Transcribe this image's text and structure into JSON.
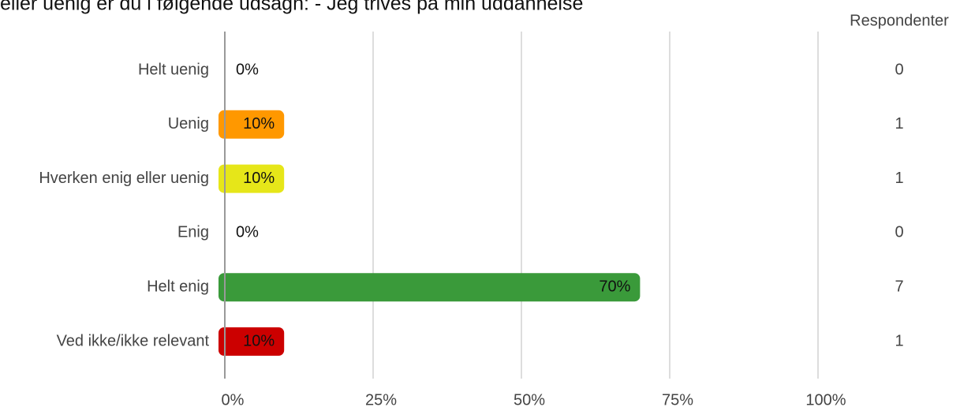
{
  "chart_data": {
    "type": "bar",
    "orientation": "horizontal",
    "title": "eller uenig er du i følgende udsagn: - Jeg trives på min uddannelse",
    "categories": [
      "Helt uenig",
      "Uenig",
      "Hverken enig eller uenig",
      "Enig",
      "Helt enig",
      "Ved ikke/ikke relevant"
    ],
    "values": [
      0,
      10,
      10,
      0,
      70,
      10
    ],
    "value_labels": [
      "0%",
      "10%",
      "10%",
      "0%",
      "70%",
      "10%"
    ],
    "colors": [
      "#b71c1c",
      "#ff9800",
      "#e6e619",
      "#8bc34a",
      "#3a9a3a",
      "#cc0000"
    ],
    "respondents_label": "Respondenter",
    "respondents": [
      0,
      1,
      1,
      0,
      7,
      1
    ],
    "xlim": [
      0,
      100
    ],
    "xticks": [
      {
        "value": 0,
        "label": "0%"
      },
      {
        "value": 25,
        "label": "25%"
      },
      {
        "value": 50,
        "label": "50%"
      },
      {
        "value": 75,
        "label": "75%"
      },
      {
        "value": 100,
        "label": "100%"
      }
    ],
    "grid": true
  }
}
